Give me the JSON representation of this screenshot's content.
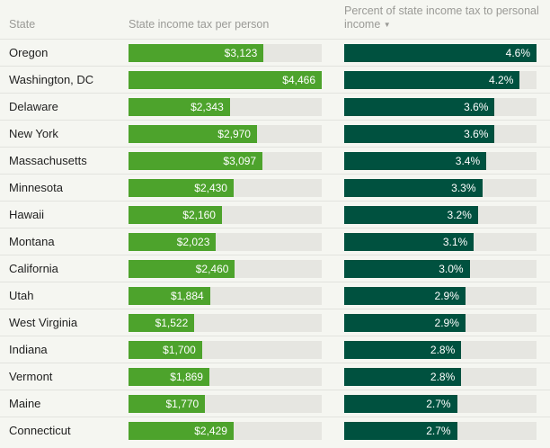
{
  "header": {
    "col_state": "State",
    "col_tax": "State income tax per person",
    "col_pct": "Percent of state income tax to personal income",
    "sort_icon": "▼"
  },
  "colors": {
    "background": "#F5F6F1",
    "track": "#E6E6E1",
    "tax_bar": "#4DA32C",
    "pct_bar": "#00513F",
    "separator": "#E2E3DE",
    "header_text": "#9A9A96",
    "label_text": "#1F1F1F",
    "value_text": "#FFFFFF"
  },
  "chart_data": {
    "type": "bar",
    "orientation": "horizontal",
    "title": "",
    "categories": [
      "Oregon",
      "Washington, DC",
      "Delaware",
      "New York",
      "Massachusetts",
      "Minnesota",
      "Hawaii",
      "Montana",
      "California",
      "Utah",
      "West Virginia",
      "Indiana",
      "Vermont",
      "Maine",
      "Connecticut"
    ],
    "series": [
      {
        "name": "State income tax per person",
        "values": [
          3123,
          4466,
          2343,
          2970,
          3097,
          2430,
          2160,
          2023,
          2460,
          1884,
          1522,
          1700,
          1869,
          1770,
          2429
        ],
        "labels": [
          "$3,123",
          "$4,466",
          "$2,343",
          "$2,970",
          "$3,097",
          "$2,430",
          "$2,160",
          "$2,023",
          "$2,460",
          "$1,884",
          "$1,522",
          "$1,700",
          "$1,869",
          "$1,770",
          "$2,429"
        ],
        "axis_max": 4466
      },
      {
        "name": "Percent of state income tax to personal income",
        "values": [
          4.6,
          4.2,
          3.6,
          3.6,
          3.4,
          3.3,
          3.2,
          3.1,
          3.0,
          2.9,
          2.9,
          2.8,
          2.8,
          2.7,
          2.7
        ],
        "labels": [
          "4.6%",
          "4.2%",
          "3.6%",
          "3.6%",
          "3.4%",
          "3.3%",
          "3.2%",
          "3.1%",
          "3.0%",
          "2.9%",
          "2.9%",
          "2.8%",
          "2.8%",
          "2.7%",
          "2.7%"
        ],
        "axis_max": 4.6
      }
    ],
    "sort": {
      "column": "Percent of state income tax to personal income",
      "direction": "descending"
    },
    "legend": "none",
    "grid": false,
    "value_labels": "inside-end"
  }
}
